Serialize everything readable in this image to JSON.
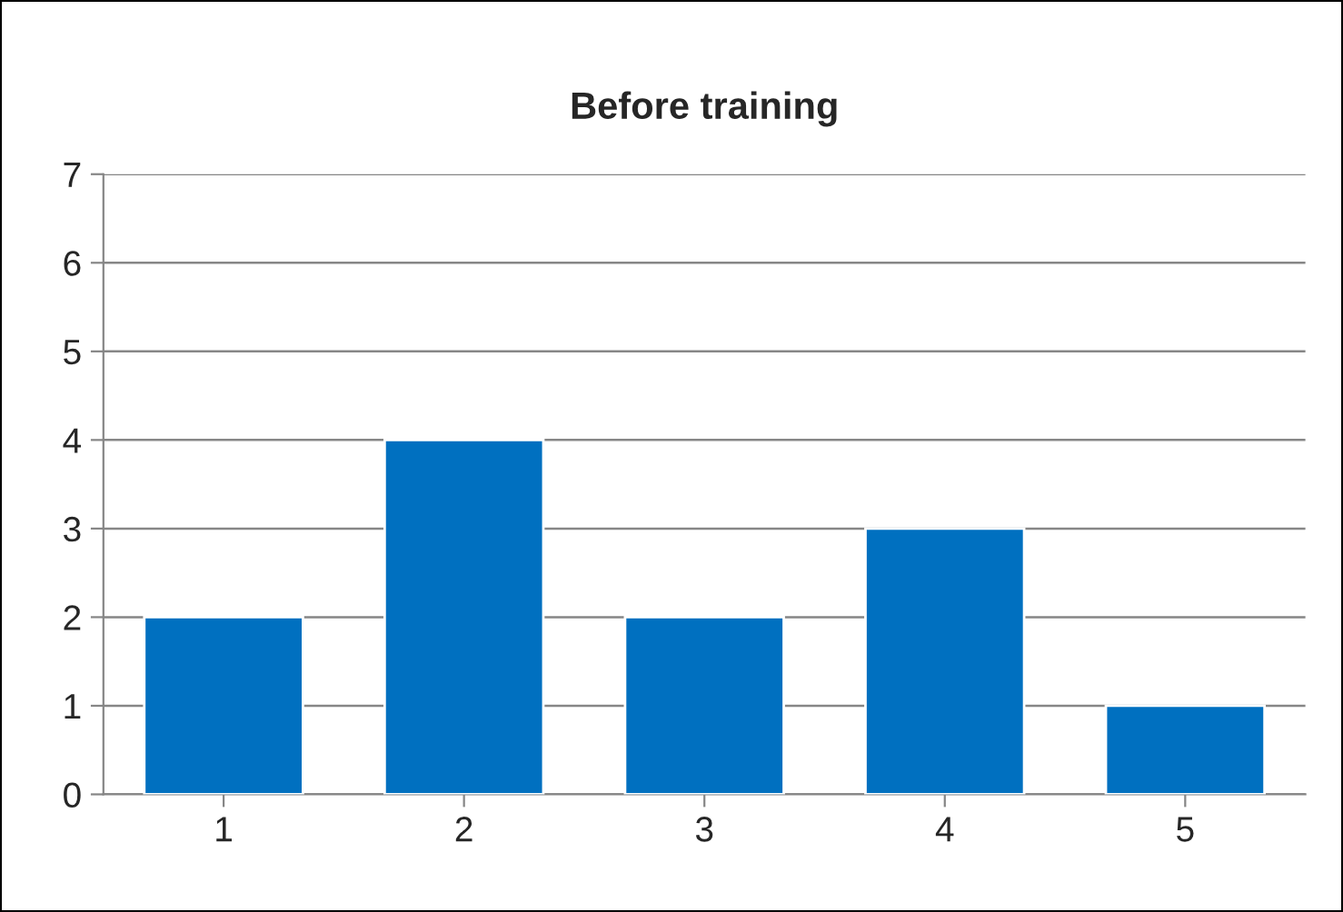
{
  "chart_data": {
    "type": "bar",
    "title": "Before training",
    "categories": [
      "1",
      "2",
      "3",
      "4",
      "5"
    ],
    "values": [
      2,
      4,
      2,
      3,
      1
    ],
    "color": "#0070c0",
    "ylim": [
      0,
      7
    ],
    "yticks": [
      0,
      1,
      2,
      3,
      4,
      5,
      6,
      7
    ],
    "grid": "y",
    "legend": false
  }
}
